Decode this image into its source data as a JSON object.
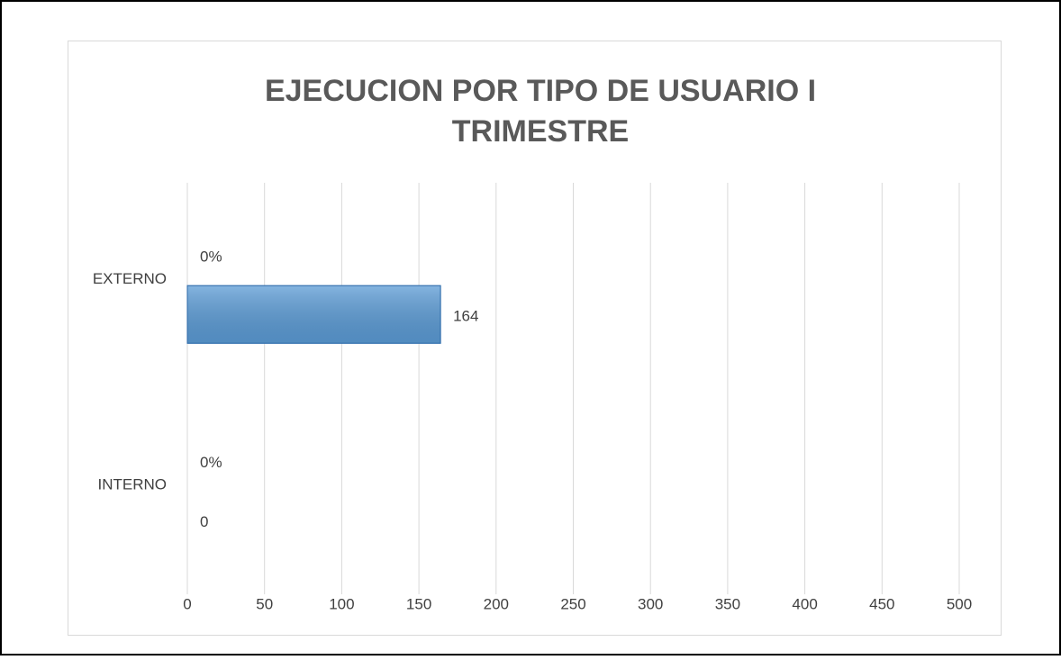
{
  "chart_data": {
    "type": "bar",
    "orientation": "horizontal",
    "title": "EJECUCION POR TIPO DE USUARIO I TRIMESTRE",
    "categories": [
      "EXTERNO",
      "INTERNO"
    ],
    "series": [
      {
        "color": "#5b9bd5",
        "values": [
          0,
          0
        ],
        "value_labels": [
          "0%",
          "0%"
        ]
      },
      {
        "color": "#5b9bd5",
        "values": [
          164,
          0
        ]
      }
    ],
    "xlim": [
      0,
      500
    ],
    "xticks": [
      0,
      50,
      100,
      150,
      200,
      250,
      300,
      350,
      400,
      450,
      500
    ],
    "grid": true
  }
}
